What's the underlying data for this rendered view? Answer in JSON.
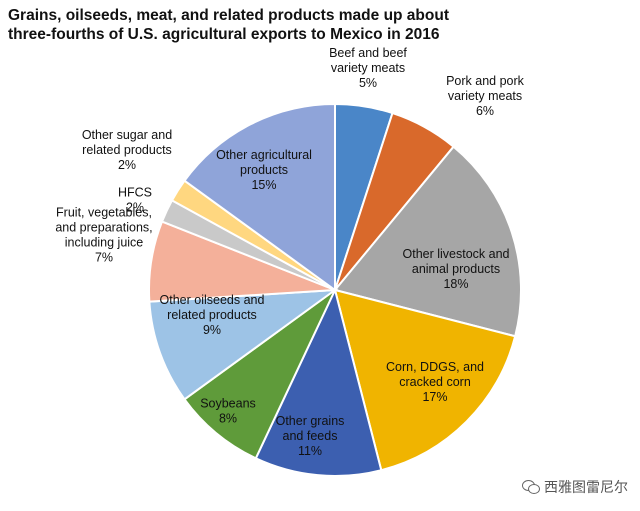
{
  "title_lines": [
    "Grains, oilseeds, meat, and related products made up about",
    "three-fourths of U.S. agricultural exports to Mexico in 2016"
  ],
  "watermark": "西雅图雷尼尔",
  "chart_data": {
    "type": "pie",
    "title": "Grains, oilseeds, meat, and related products made up about three-fourths of U.S. agricultural exports to Mexico in 2016",
    "unit": "%",
    "slices": [
      {
        "label_lines": [
          "Beef and beef",
          "variety meats"
        ],
        "value": 5,
        "value_label": "5%",
        "color": "#4a86c8"
      },
      {
        "label_lines": [
          "Pork and pork",
          "variety meats"
        ],
        "value": 6,
        "value_label": "6%",
        "color": "#d9692b"
      },
      {
        "label_lines": [
          "Other livestock and",
          "animal products"
        ],
        "value": 18,
        "value_label": "18%",
        "color": "#a6a6a6"
      },
      {
        "label_lines": [
          "Corn, DDGS, and",
          "cracked corn"
        ],
        "value": 17,
        "value_label": "17%",
        "color": "#f0b400"
      },
      {
        "label_lines": [
          "Other grains",
          "and feeds"
        ],
        "value": 11,
        "value_label": "11%",
        "color": "#3c5fb0"
      },
      {
        "label_lines": [
          "Soybeans"
        ],
        "value": 8,
        "value_label": "8%",
        "color": "#5f9b3a"
      },
      {
        "label_lines": [
          "Other oilseeds and",
          "related products"
        ],
        "value": 9,
        "value_label": "9%",
        "color": "#9dc3e6"
      },
      {
        "label_lines": [
          "Fruit, vegetables,",
          "and preparations,",
          "including juice"
        ],
        "value": 7,
        "value_label": "7%",
        "color": "#f4b09a"
      },
      {
        "label_lines": [
          "HFCS"
        ],
        "value": 2,
        "value_label": "2%",
        "color": "#c9c9c9"
      },
      {
        "label_lines": [
          "Other sugar and",
          "related products"
        ],
        "value": 2,
        "value_label": "2%",
        "color": "#ffd780"
      },
      {
        "label_lines": [
          "Other agricultural",
          "products"
        ],
        "value": 15,
        "value_label": "15%",
        "color": "#8fa4d9"
      }
    ]
  }
}
